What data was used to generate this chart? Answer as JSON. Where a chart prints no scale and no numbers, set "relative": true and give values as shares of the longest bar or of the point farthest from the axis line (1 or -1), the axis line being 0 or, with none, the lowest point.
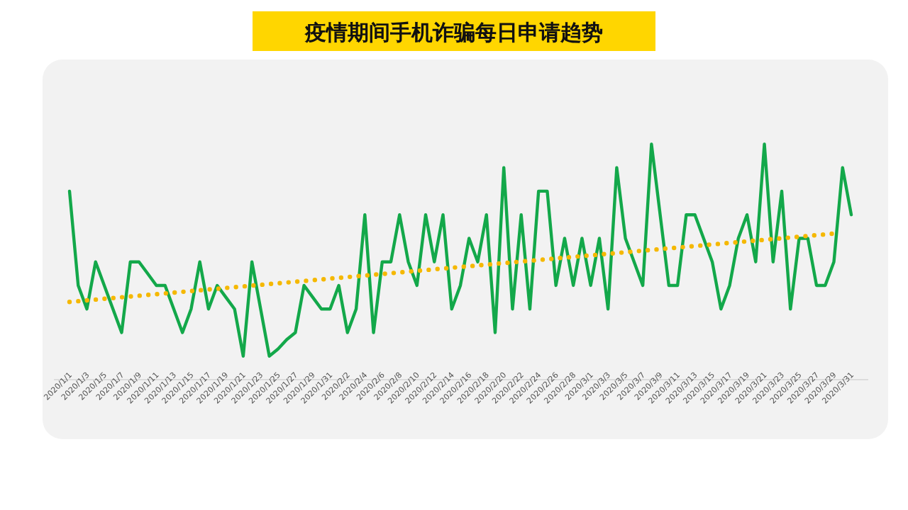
{
  "chart_data": {
    "type": "line",
    "title": "疫情期间手机诈骗每日申请趋势",
    "relative": true,
    "categories": [
      "2020/1/1",
      null,
      "2020/1/3",
      null,
      "2020/1/5",
      null,
      "2020/1/7",
      null,
      "2020/1/9",
      null,
      "2020/1/11",
      null,
      "2020/1/13",
      null,
      "2020/1/15",
      null,
      "2020/1/17",
      null,
      "2020/1/19",
      null,
      "2020/1/21",
      null,
      "2020/1/23",
      null,
      "2020/1/25",
      null,
      "2020/1/27",
      null,
      "2020/1/29",
      null,
      "2020/1/31",
      null,
      "2020/2/2",
      null,
      "2020/2/4",
      null,
      "2020/2/6",
      null,
      "2020/2/8",
      null,
      "2020/2/10",
      null,
      "2020/2/12",
      null,
      "2020/2/14",
      null,
      "2020/2/16",
      null,
      "2020/2/18",
      null,
      "2020/2/20",
      null,
      "2020/2/22",
      null,
      "2020/2/24",
      null,
      "2020/2/26",
      null,
      "2020/2/28",
      null,
      "2020/3/1",
      null,
      "2020/3/3",
      null,
      "2020/3/5",
      null,
      "2020/3/7",
      null,
      "2020/3/9",
      null,
      "2020/3/11",
      null,
      "2020/3/13",
      null,
      "2020/3/15",
      null,
      "2020/3/17",
      null,
      "2020/3/19",
      null,
      "2020/3/21",
      null,
      "2020/3/23",
      null,
      "2020/3/25",
      null,
      "2020/3/27",
      null,
      "2020/3/29",
      null,
      "2020/3/31"
    ],
    "series": [
      {
        "color": "#13a84a",
        "values": [
          0.8,
          0.4,
          0.3,
          0.5,
          0.4,
          0.3,
          0.2,
          0.5,
          0.5,
          0.45,
          0.4,
          0.4,
          0.3,
          0.2,
          0.3,
          0.5,
          0.3,
          0.4,
          0.35,
          0.3,
          0.1,
          0.5,
          0.3,
          0.1,
          0.13,
          0.17,
          0.2,
          0.4,
          0.35,
          0.3,
          0.3,
          0.4,
          0.2,
          0.3,
          0.7,
          0.2,
          0.5,
          0.5,
          0.7,
          0.5,
          0.4,
          0.7,
          0.5,
          0.7,
          0.3,
          0.4,
          0.6,
          0.5,
          0.7,
          0.2,
          0.9,
          0.3,
          0.7,
          0.3,
          0.8,
          0.8,
          0.4,
          0.6,
          0.4,
          0.6,
          0.4,
          0.6,
          0.3,
          0.9,
          0.6,
          0.5,
          0.4,
          1,
          0.7,
          0.4,
          0.4,
          0.7,
          0.7,
          0.6,
          0.5,
          0.3,
          0.4,
          0.6,
          0.7,
          0.5,
          1,
          0.5,
          0.8,
          0.3,
          0.6,
          0.6,
          0.4,
          0.4,
          0.5,
          0.9,
          0.7
        ]
      },
      {
        "type": "line",
        "line_style": "dotted",
        "color": "#f5b800",
        "x": [
          "2020/1/1",
          "2020/3/29"
        ],
        "values": [
          0.33,
          0.62
        ]
      }
    ]
  }
}
